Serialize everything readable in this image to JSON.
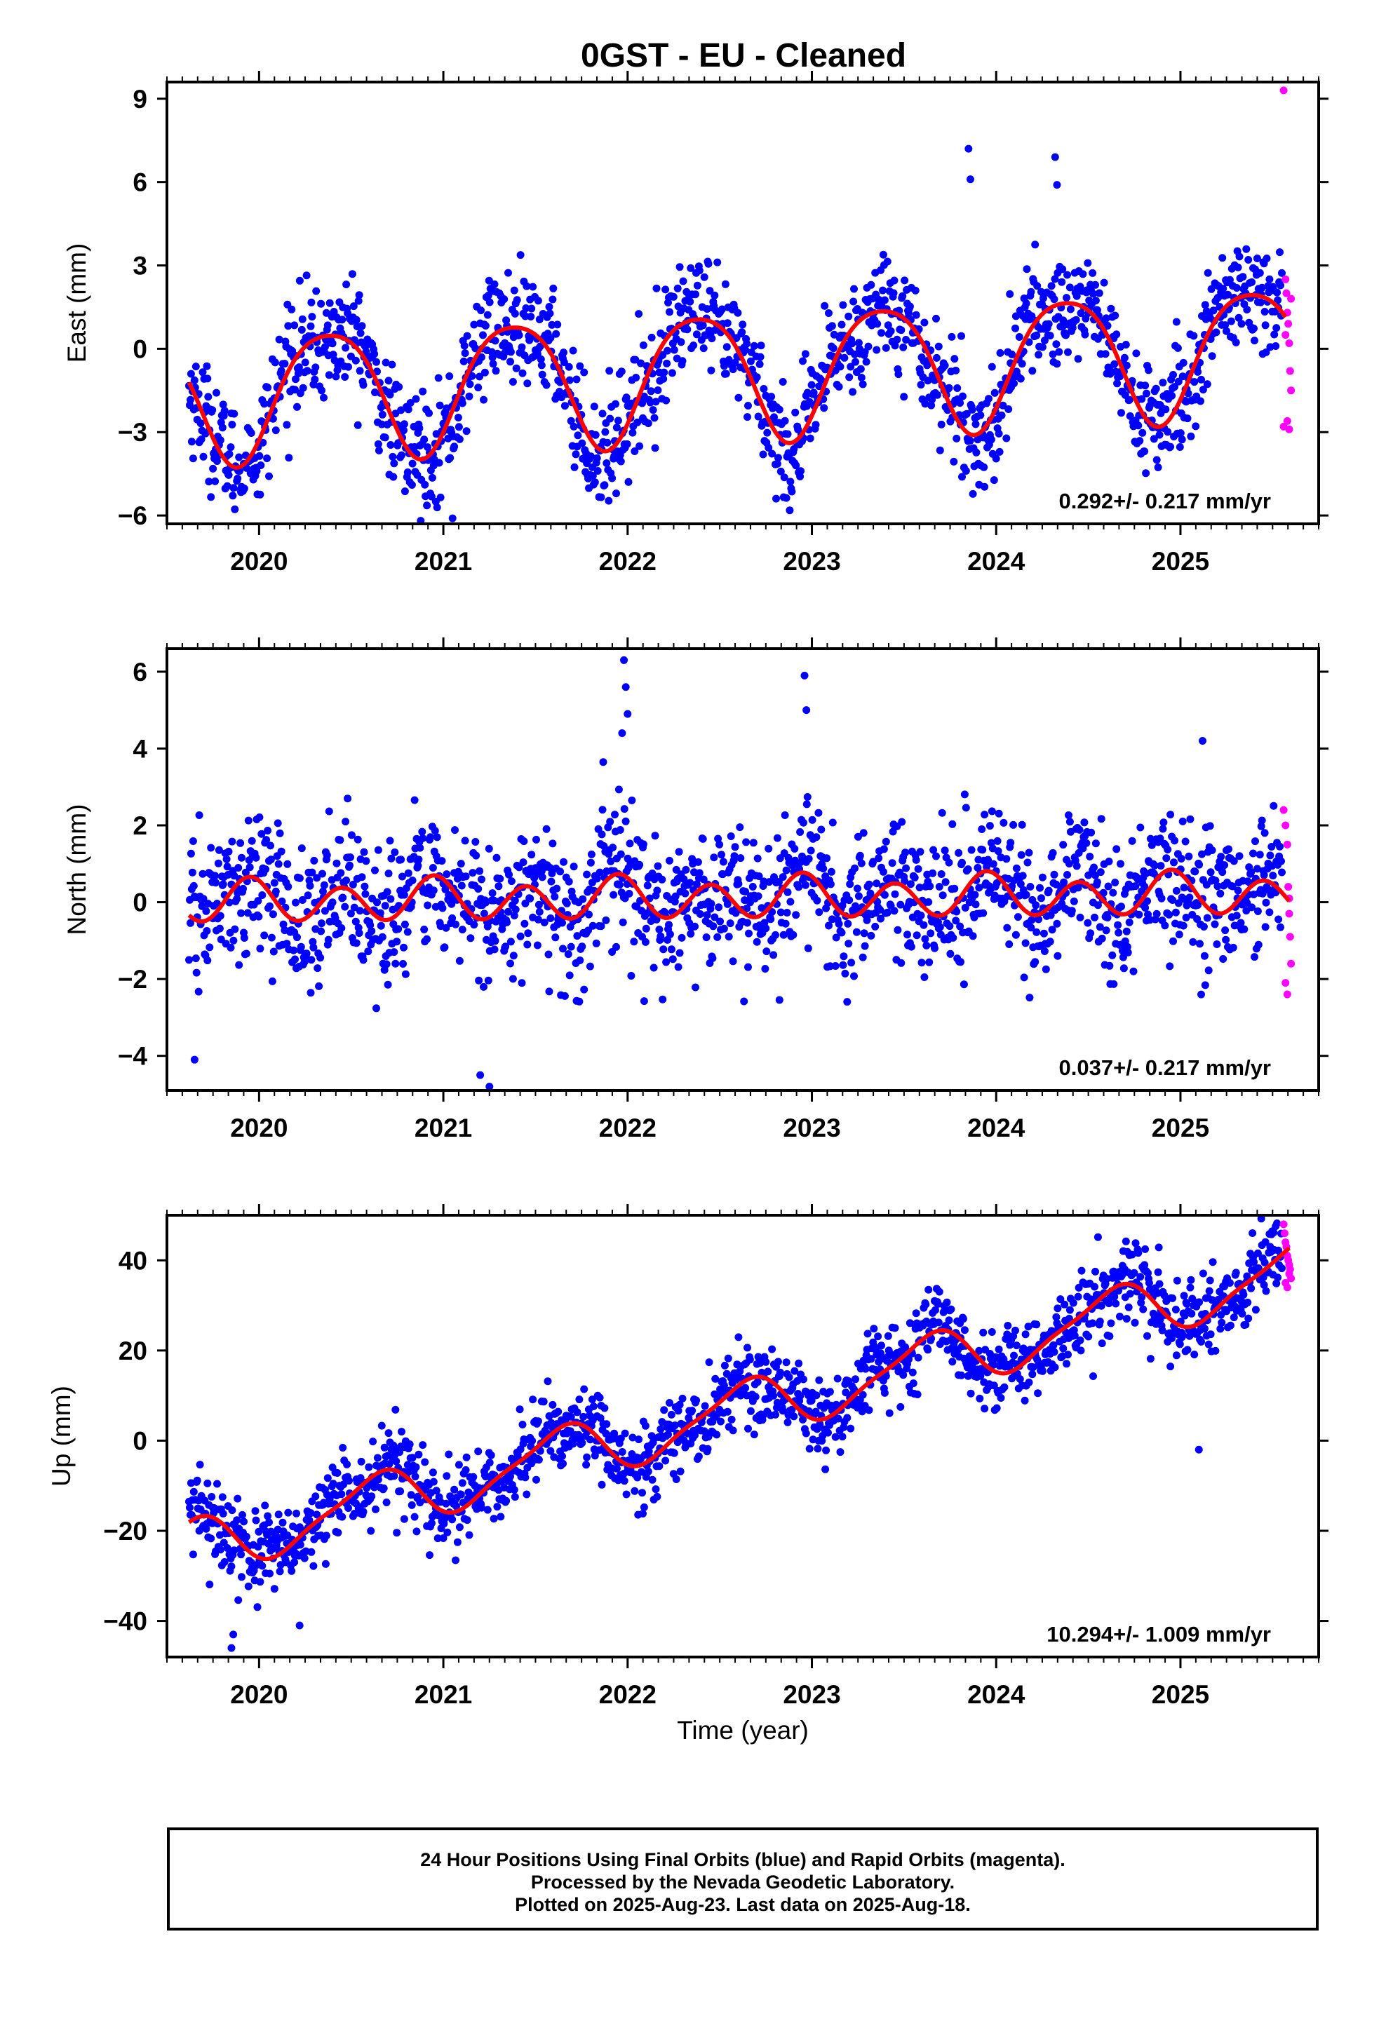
{
  "title": "0GST  - EU - Cleaned",
  "xlabel": "Time (year)",
  "caption": [
    "24 Hour Positions Using Final Orbits (blue) and Rapid Orbits (magenta).",
    "Processed by the Nevada Geodetic Laboratory.",
    "Plotted on 2025-Aug-23. Last data on 2025-Aug-18."
  ],
  "colors": {
    "final": "#0000ff",
    "rapid": "#ff00ff",
    "model": "#ff0000"
  },
  "chart_data": [
    {
      "type": "scatter",
      "ylabel": "East (mm)",
      "rate": "0.292+/- 0.217 mm/yr",
      "xlim": [
        2019.5,
        2025.75
      ],
      "ylim": [
        -6.3,
        9.6
      ],
      "xticks": [
        2020,
        2021,
        2022,
        2023,
        2024,
        2025
      ],
      "yticks": [
        -6,
        -3,
        0,
        3,
        6,
        9
      ],
      "model": {
        "intercept": -1.7,
        "trend": 0.292,
        "t0": 2019.62,
        "amp": 2.3,
        "phase_peak": 0.38,
        "amp2": 0.35,
        "peak2": 0.13
      },
      "scatter_sd": 1.0,
      "final_range": [
        2019.62,
        2025.55
      ],
      "rapid": {
        "x": [
          2025.56,
          2025.57,
          2025.575,
          2025.58,
          2025.585,
          2025.59,
          2025.595,
          2025.6,
          2025.56,
          2025.58,
          2025.59,
          2025.6,
          2025.57
        ],
        "y": [
          9.3,
          2.5,
          2.0,
          1.3,
          0.9,
          0.2,
          -0.8,
          -1.5,
          -2.8,
          -2.6,
          -2.9,
          1.8,
          0.5
        ]
      },
      "outliers": {
        "x": [
          2023.85,
          2023.86,
          2024.32,
          2024.33,
          2020.83,
          2021.05
        ],
        "y": [
          7.2,
          6.1,
          6.9,
          5.9,
          -4.9,
          -6.1
        ]
      }
    },
    {
      "type": "scatter",
      "ylabel": "North (mm)",
      "rate": "0.037+/- 0.217 mm/yr",
      "xlim": [
        2019.5,
        2025.75
      ],
      "ylim": [
        -4.9,
        6.6
      ],
      "xticks": [
        2020,
        2021,
        2022,
        2023,
        2024,
        2025
      ],
      "yticks": [
        -4,
        -2,
        0,
        2,
        4,
        6
      ],
      "model": {
        "intercept": 0.0,
        "trend": 0.037,
        "t0": 2019.62,
        "amp": 0.15,
        "phase_peak": 0.95,
        "amp2": 0.5,
        "peak2": 0.45
      },
      "scatter_sd": 0.9,
      "final_range": [
        2019.62,
        2025.55
      ],
      "rapid": {
        "x": [
          2025.56,
          2025.57,
          2025.58,
          2025.585,
          2025.59,
          2025.595,
          2025.6,
          2025.57,
          2025.58,
          2025.59
        ],
        "y": [
          2.4,
          2.0,
          1.5,
          0.4,
          0.1,
          -0.9,
          -1.6,
          -2.1,
          -2.4,
          -0.3
        ]
      },
      "outliers": {
        "x": [
          2021.98,
          2021.99,
          2022.0,
          2021.97,
          2022.96,
          2022.97,
          2021.2,
          2021.25,
          2019.65,
          2025.12
        ],
        "y": [
          6.3,
          5.6,
          4.9,
          4.4,
          5.9,
          5.0,
          -4.5,
          -4.8,
          -4.1,
          4.2
        ]
      }
    },
    {
      "type": "scatter",
      "ylabel": "Up (mm)",
      "rate": "10.294+/- 1.009 mm/yr",
      "xlim": [
        2019.5,
        2025.75
      ],
      "ylim": [
        -48,
        50
      ],
      "xticks": [
        2020,
        2021,
        2022,
        2023,
        2024,
        2025
      ],
      "yticks": [
        -40,
        -20,
        0,
        20,
        40
      ],
      "model": {
        "intercept": -24.0,
        "trend": 10.294,
        "t0": 2019.62,
        "amp": 6.0,
        "phase_peak": 0.62,
        "amp2": 1.5,
        "peak2": 0.25
      },
      "scatter_sd": 4.5,
      "final_range": [
        2019.62,
        2025.55
      ],
      "rapid": {
        "x": [
          2025.56,
          2025.565,
          2025.57,
          2025.575,
          2025.58,
          2025.585,
          2025.59,
          2025.595,
          2025.6,
          2025.57,
          2025.58,
          2025.59
        ],
        "y": [
          48,
          46,
          44,
          43,
          41,
          40,
          39,
          38,
          36,
          35,
          34,
          37
        ]
      },
      "outliers": {
        "x": [
          2019.85,
          2019.86,
          2020.22,
          2025.1
        ],
        "y": [
          -46,
          -43,
          -41,
          -2
        ]
      }
    }
  ]
}
